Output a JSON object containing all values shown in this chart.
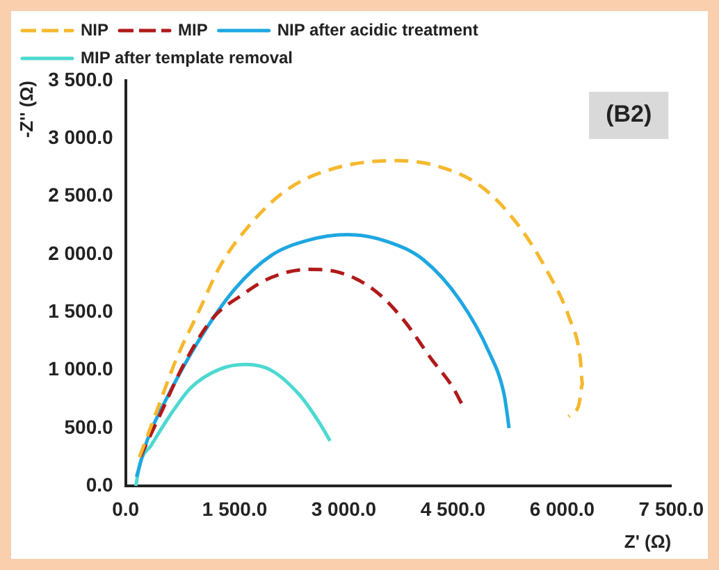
{
  "chart_data": {
    "type": "line",
    "xlabel": "Z' (Ω)",
    "ylabel": "-Z'' (Ω)",
    "annotations": [
      "(B2)"
    ],
    "xlim": [
      0,
      7500
    ],
    "ylim": [
      0,
      3500
    ],
    "xticks": [
      {
        "value": 0,
        "label": "0.0"
      },
      {
        "value": 1500,
        "label": "1 500.0"
      },
      {
        "value": 3000,
        "label": "3 000.0"
      },
      {
        "value": 4500,
        "label": "4 500.0"
      },
      {
        "value": 6000,
        "label": "6 000.0"
      },
      {
        "value": 7500,
        "label": "7 500.0"
      }
    ],
    "yticks": [
      {
        "value": 0,
        "label": "0.0"
      },
      {
        "value": 500,
        "label": "500.0"
      },
      {
        "value": 1000,
        "label": "1 000.0"
      },
      {
        "value": 1500,
        "label": "1 500.0"
      },
      {
        "value": 2000,
        "label": "2 000.0"
      },
      {
        "value": 2500,
        "label": "2 500.0"
      },
      {
        "value": 3000,
        "label": "3 000.0"
      },
      {
        "value": 3500,
        "label": "3 500.0"
      }
    ],
    "grid": false,
    "legend": "top",
    "marker": "none",
    "series": [
      {
        "name": "NIP",
        "color": "#f5b82e",
        "line_style": "dashed",
        "x": [
          190,
          400,
          700,
          1000,
          1300,
          1700,
          2200,
          2800,
          3700,
          4300,
          4900,
          5400,
          5800,
          6100,
          6250,
          6280,
          6230,
          6090
        ],
        "values": [
          250,
          600,
          1100,
          1500,
          1900,
          2250,
          2550,
          2730,
          2810,
          2760,
          2580,
          2250,
          1850,
          1450,
          1100,
          880,
          700,
          600
        ]
      },
      {
        "name": "MIP",
        "color": "#b01a1a",
        "line_style": "dashed",
        "x": [
          200,
          500,
          800,
          1200,
          1600,
          2000,
          2500,
          2900,
          3400,
          3800,
          4200,
          4500,
          4620
        ],
        "values": [
          250,
          650,
          1050,
          1450,
          1650,
          1800,
          1870,
          1850,
          1700,
          1450,
          1100,
          850,
          710
        ]
      },
      {
        "name": "NIP after acidic treatment",
        "color": "#1ea7e1",
        "line_style": "solid",
        "x": [
          150,
          300,
          600,
          1000,
          1500,
          2000,
          2500,
          3050,
          3600,
          4100,
          4600,
          5000,
          5200,
          5250,
          5270
        ],
        "values": [
          80,
          400,
          800,
          1250,
          1700,
          1990,
          2120,
          2170,
          2110,
          1950,
          1600,
          1150,
          800,
          600,
          500
        ]
      },
      {
        "name": "MIP after template removal",
        "color": "#4dd9d0",
        "line_style": "solid",
        "x": [
          140,
          200,
          350,
          600,
          900,
          1300,
          1650,
          2000,
          2400,
          2650,
          2810
        ],
        "values": [
          0,
          200,
          350,
          600,
          850,
          1010,
          1050,
          1000,
          780,
          560,
          390
        ]
      }
    ]
  }
}
